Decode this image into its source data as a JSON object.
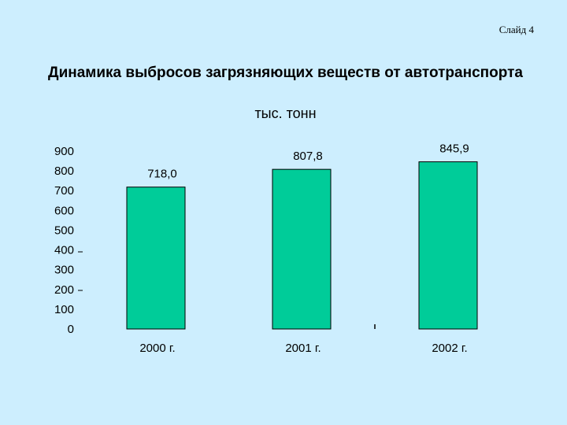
{
  "slide": {
    "number_label": "Слайд 4"
  },
  "chart_data": {
    "type": "bar",
    "title": "Динамика выбросов загрязняющих веществ от автотранспорта",
    "subtitle": "тыс. тонн",
    "categories": [
      "2000 г.",
      "2001 г.",
      "2002 г."
    ],
    "values": [
      718.0,
      807.8,
      845.9
    ],
    "value_labels": [
      "718,0",
      "807,8",
      "845,9"
    ],
    "yticks": [
      0,
      100,
      200,
      300,
      400,
      500,
      600,
      700,
      800,
      900
    ],
    "ylim": [
      0,
      900
    ],
    "xlabel": "",
    "ylabel": "",
    "grid": false,
    "bar_color": "#00cc99"
  }
}
